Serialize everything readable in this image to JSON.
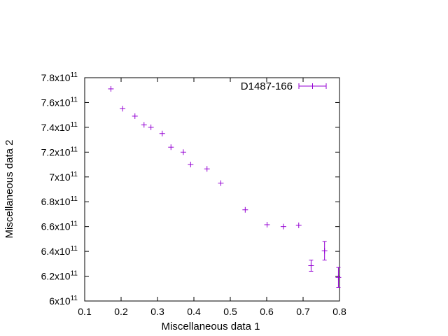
{
  "chart_data": {
    "type": "scatter",
    "title": "",
    "xlabel": "Miscellaneous data 1",
    "ylabel": "Miscellaneous data 2",
    "xlim": [
      0.1,
      0.8
    ],
    "ylim": [
      600000000000,
      780000000000
    ],
    "x_ticks": [
      "0.1",
      "0.2",
      "0.3",
      "0.4",
      "0.5",
      "0.6",
      "0.7",
      "0.8"
    ],
    "y_ticks": [
      {
        "mantissa": "6",
        "exp": "11",
        "value": 600000000000
      },
      {
        "mantissa": "6.2",
        "exp": "11",
        "value": 620000000000
      },
      {
        "mantissa": "6.4",
        "exp": "11",
        "value": 640000000000
      },
      {
        "mantissa": "6.6",
        "exp": "11",
        "value": 660000000000
      },
      {
        "mantissa": "6.8",
        "exp": "11",
        "value": 680000000000
      },
      {
        "mantissa": "7",
        "exp": "11",
        "value": 700000000000
      },
      {
        "mantissa": "7.2",
        "exp": "11",
        "value": 720000000000
      },
      {
        "mantissa": "7.4",
        "exp": "11",
        "value": 740000000000
      },
      {
        "mantissa": "7.6",
        "exp": "11",
        "value": 760000000000
      },
      {
        "mantissa": "7.8",
        "exp": "11",
        "value": 780000000000
      }
    ],
    "legend_position": "top-right",
    "grid": false,
    "series": [
      {
        "name": "D1487-166",
        "color": "#9400d3",
        "points": [
          {
            "x": 0.172,
            "y": 771000000000,
            "err": 0
          },
          {
            "x": 0.204,
            "y": 755000000000,
            "err": 0
          },
          {
            "x": 0.238,
            "y": 749000000000,
            "err": 0
          },
          {
            "x": 0.263,
            "y": 742000000000,
            "err": 0
          },
          {
            "x": 0.282,
            "y": 740000000000,
            "err": 0
          },
          {
            "x": 0.313,
            "y": 735000000000,
            "err": 0
          },
          {
            "x": 0.337,
            "y": 724000000000,
            "err": 0
          },
          {
            "x": 0.371,
            "y": 720000000000,
            "err": 0
          },
          {
            "x": 0.391,
            "y": 710000000000,
            "err": 0
          },
          {
            "x": 0.436,
            "y": 706500000000,
            "err": 0
          },
          {
            "x": 0.474,
            "y": 695000000000,
            "err": 0
          },
          {
            "x": 0.541,
            "y": 673500000000,
            "err": 0
          },
          {
            "x": 0.601,
            "y": 661500000000,
            "err": 0
          },
          {
            "x": 0.646,
            "y": 660000000000,
            "err": 0
          },
          {
            "x": 0.688,
            "y": 661000000000,
            "err": 0
          },
          {
            "x": 0.722,
            "y": 628500000000,
            "err": 4500000000
          },
          {
            "x": 0.759,
            "y": 640500000000,
            "err": 7500000000
          },
          {
            "x": 0.797,
            "y": 619000000000,
            "err": 8000000000
          }
        ]
      }
    ]
  }
}
